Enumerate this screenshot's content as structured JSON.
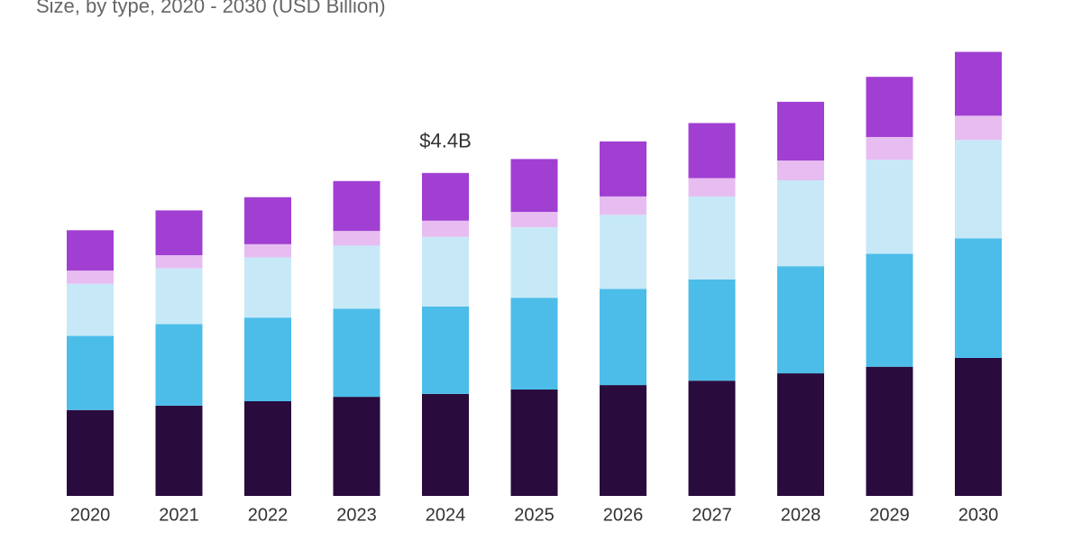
{
  "chart_data": {
    "type": "stacked-bar",
    "subtitle": "Size, by type, 2020 - 2030 (USD Billion)",
    "annotation": "$4.4B",
    "annotation_category": "2024",
    "categories": [
      "2020",
      "2021",
      "2022",
      "2023",
      "2024",
      "2025",
      "2026",
      "2027",
      "2028",
      "2029",
      "2030"
    ],
    "series": [
      {
        "color": "#2a0b3e",
        "values": [
          1.17,
          1.23,
          1.29,
          1.35,
          1.39,
          1.45,
          1.51,
          1.57,
          1.67,
          1.76,
          1.88
        ]
      },
      {
        "color": "#4cbde9",
        "values": [
          1.01,
          1.11,
          1.14,
          1.2,
          1.19,
          1.25,
          1.31,
          1.38,
          1.46,
          1.54,
          1.63
        ]
      },
      {
        "color": "#c7e9f7",
        "values": [
          0.71,
          0.76,
          0.82,
          0.86,
          0.95,
          0.96,
          1.01,
          1.13,
          1.17,
          1.28,
          1.34
        ]
      },
      {
        "color": "#e7bdf1",
        "values": [
          0.18,
          0.18,
          0.18,
          0.2,
          0.22,
          0.21,
          0.25,
          0.25,
          0.27,
          0.31,
          0.33
        ]
      },
      {
        "color": "#a13fd2",
        "values": [
          0.55,
          0.61,
          0.64,
          0.68,
          0.65,
          0.72,
          0.75,
          0.75,
          0.8,
          0.82,
          0.87
        ]
      }
    ]
  }
}
